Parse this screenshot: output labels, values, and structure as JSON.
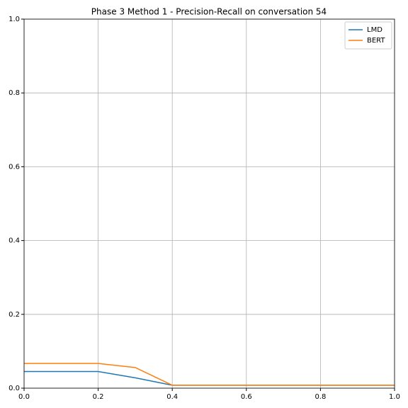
{
  "chart_data": {
    "type": "line",
    "title": "Phase 3 Method 1 - Precision-Recall on conversation 54",
    "x": [
      0,
      0.1,
      0.2,
      0.3,
      0.4,
      0.5,
      0.6,
      0.7,
      0.8,
      0.9,
      1.0
    ],
    "series": [
      {
        "name": "LMD",
        "color": "#1f77b4",
        "values": [
          0.045,
          0.045,
          0.045,
          0.028,
          0.008,
          0.008,
          0.008,
          0.008,
          0.008,
          0.008,
          0.008
        ]
      },
      {
        "name": "BERT",
        "color": "#ff7f0e",
        "values": [
          0.067,
          0.067,
          0.067,
          0.056,
          0.008,
          0.008,
          0.008,
          0.008,
          0.008,
          0.008,
          0.008
        ]
      }
    ],
    "xlim": [
      0,
      1
    ],
    "ylim": [
      0,
      1
    ],
    "xticks": [
      {
        "value": 0,
        "label": "0.0"
      },
      0.2,
      0.4,
      0.6,
      0.8,
      {
        "value": 1,
        "label": "1.0"
      }
    ],
    "yticks": [
      {
        "value": 0,
        "label": "0.0"
      },
      0.2,
      0.4,
      0.6,
      0.8,
      {
        "value": 1,
        "label": "1.0"
      }
    ],
    "grid": true,
    "legend": "upper right"
  }
}
